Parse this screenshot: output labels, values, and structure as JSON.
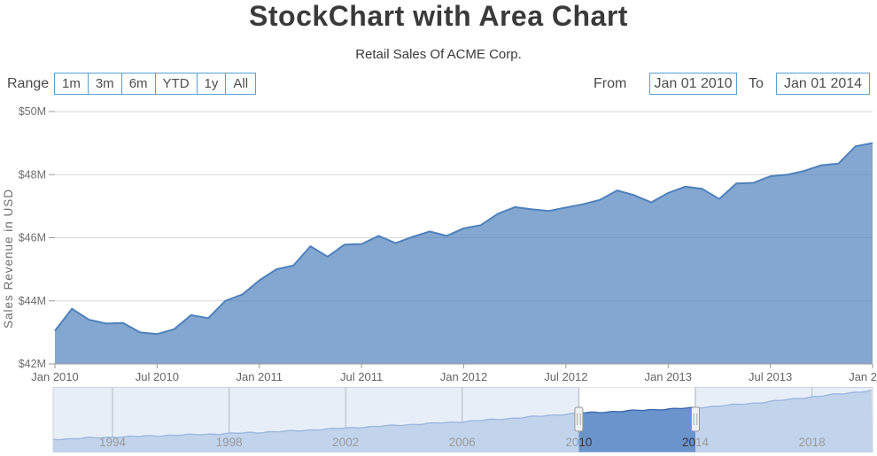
{
  "header": {
    "title": "StockChart with Area Chart",
    "subtitle": "Retail Sales Of ACME Corp."
  },
  "toolbar": {
    "range_label": "Range",
    "range_buttons": [
      "1m",
      "3m",
      "6m",
      "YTD",
      "1y",
      "All"
    ],
    "from_label": "From",
    "from_value": "Jan 01 2010",
    "to_label": "To",
    "to_value": "Jan 01 2014"
  },
  "colors": {
    "accent_border": "#56a0d3",
    "title_text": "#3a3a3a",
    "series_line": "#4f81bc",
    "series_fill": "rgba(79,129,188,0.7)",
    "gridline": "#d7d7d7",
    "axis_line": "#999999",
    "axis_label": "#6e6e6e",
    "nav_bg": "#e8eef8",
    "nav_border": "#ccd3e0",
    "nav_gridline": "#b3bac6",
    "nav_area_fill": "#c2d3ec",
    "nav_area_line": "#9cb9e0",
    "nav_sel_bg": "#ffffff",
    "nav_sel_fill": "#6b93cc",
    "nav_sel_line": "#3c69ae",
    "nav_label": "#9b9b9b",
    "nav_sel_label": "#383838",
    "handle_fill": "#f0f0f0",
    "handle_border": "#999999"
  },
  "chart_data": [
    {
      "type": "area",
      "name": "retail-sales-monthly",
      "ylabel": "Sales Revenue in USD",
      "ylim": [
        42,
        50
      ],
      "y_tick_labels": [
        "$50M",
        "$48M",
        "$46M",
        "$44M",
        "$42M"
      ],
      "x_tick_labels": [
        "Jan 2010",
        "Jul 2010",
        "Jan 2011",
        "Jul 2011",
        "Jan 2012",
        "Jul 2012",
        "Jan 2013",
        "Jul 2013",
        "Jan 2"
      ],
      "x_range": [
        "Jan 2010",
        "Jan 2014"
      ],
      "x_interval": "1 month",
      "values_unit": "USD millions",
      "grid": true,
      "legend": false,
      "values": [
        43.05,
        43.75,
        43.4,
        43.28,
        43.3,
        43.0,
        42.95,
        43.1,
        43.55,
        43.45,
        44.0,
        44.2,
        44.65,
        45.0,
        45.12,
        45.73,
        45.4,
        45.78,
        45.8,
        46.06,
        45.83,
        46.03,
        46.2,
        46.06,
        46.3,
        46.4,
        46.76,
        46.97,
        46.9,
        46.85,
        46.96,
        47.06,
        47.2,
        47.5,
        47.35,
        47.12,
        47.42,
        47.62,
        47.55,
        47.23,
        47.72,
        47.74,
        47.95,
        48.0,
        48.12,
        48.3,
        48.35,
        48.9,
        49.0
      ]
    },
    {
      "type": "area",
      "name": "navigator-full-range",
      "role": "range-navigator",
      "x_tick_labels": [
        "1994",
        "1998",
        "2002",
        "2006",
        "2010",
        "2014",
        "2018"
      ],
      "x_range": [
        1992,
        2020
      ],
      "selected_range": [
        "2010",
        "2014"
      ],
      "values_unit": "USD millions",
      "series": [
        {
          "name": "retail-sales-yearly",
          "x": [
            1992,
            1994,
            1996,
            1998,
            2000,
            2002,
            2004,
            2006,
            2008,
            2010,
            2012,
            2014,
            2016,
            2018,
            2020
          ],
          "values": [
            14,
            16.5,
            18.5,
            20.5,
            23,
            26.5,
            30,
            33.5,
            38,
            43,
            46,
            49,
            54,
            61,
            68
          ]
        }
      ]
    }
  ]
}
